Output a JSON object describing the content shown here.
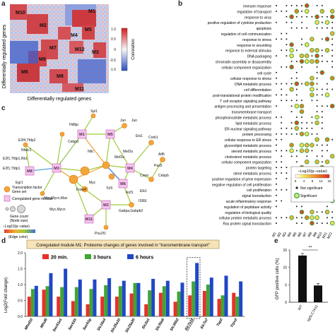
{
  "panels": {
    "a": {
      "letter": "a",
      "xlabel": "Differentially regulated genes",
      "ylabel": "Differentially regulated genes",
      "colorbar_title": "Correlation",
      "colorbar_ticks": [
        "1.0",
        "0.5",
        "0",
        "-0.5",
        "-1.0"
      ],
      "modules": [
        "M1",
        "M2",
        "M3",
        "M4",
        "M5",
        "M6",
        "M7",
        "M8",
        "M9",
        "M10",
        "M11",
        "M12"
      ]
    },
    "b": {
      "letter": "b",
      "terms": [
        "immune response",
        "regulation of transport",
        "response to virus",
        "positive regulation of cytokine production",
        "apoptosis",
        "regulation of cell communication",
        "response to stress",
        "response to wounding",
        "response to external stimulus",
        "DNA packaging",
        "chromatin assembly or disassembly",
        "cellular component organization",
        "cell cycle",
        "cellular response to stress",
        "DNA metabolic process",
        "cell differentiation",
        "post-translational protein modification",
        "T cell receptor signaling pathway",
        "antigen processing and presentation",
        "transmembrane transport",
        "phosphoinositide metabolic process",
        "lipid metabolic process",
        "ER-nuclear signaling pathway",
        "protein processing",
        "cellular response to ER stress",
        "glycerolipid metabolic process",
        "steroid metabolic process",
        "cholesterol metabolic process",
        "cellular component organization",
        "protein targeting",
        "sterol metabolic process",
        "positive regulation of gene expression",
        "negative regulation of cell proliferation",
        "cell proliferation",
        "signal transduction",
        "acute inflammatory response",
        "regulation of peptidase activity",
        "regulation of biological quality",
        "cellular protein metabolic process",
        "Ras protein signal transduction"
      ],
      "modules": [
        "M1",
        "M2",
        "M3",
        "M4",
        "M5",
        "M6",
        "M7",
        "M8",
        "M9",
        "M10",
        "M11",
        "M12"
      ],
      "legend": {
        "title": "−Log10(p−value)",
        "ticks": [
          "0",
          "4",
          "8",
          "12",
          "16"
        ],
        "not_significant": "Not significant",
        "significant": "Significant"
      }
    },
    "c": {
      "letter": "c",
      "legend": {
        "tf": "Transcription factor",
        "gene_set": "Gene set",
        "module": "Coregulated gene module",
        "gene_count": "Gene count",
        "node_size": "(Node size)",
        "pval": "−Log10(p−value)",
        "edge_color": "(Edge color)"
      },
      "modules": [
        "M1",
        "M2",
        "M3",
        "M4",
        "M5",
        "M6",
        "M7",
        "M8",
        "M9",
        "M10",
        "M11",
        "M12"
      ],
      "factors": [
        "Spi1",
        "Jun",
        "Nfe2l2",
        "Atf3",
        "Nfkb1",
        "Nfkb2",
        "Cebpb",
        "Pax5",
        "Atf6",
        "Mef2a",
        "Crem",
        "Maz",
        "Foxo4",
        "Tcf3",
        "Ikzf1",
        "Creb1",
        "SP1",
        "Ets1",
        "Myc",
        "Elk1",
        "Hoxa9",
        "Stat1",
        "ISRE",
        "Gfi1",
        "E2F",
        "Gabpa",
        "Pou2f1"
      ],
      "labels": [
        "Spi1",
        "Jun",
        "Hdlbp",
        "Cebpd",
        "Nfic",
        "Ets1",
        "Creb1",
        "Jun",
        "E2f4,Tfdp2",
        "Nfatc1",
        "Mef2a",
        "Atf6",
        "Pax5",
        "Mef2a",
        "Crem",
        "Cebpb",
        "E2f1,Tfdp1,Rb1",
        "Egr1",
        "Foxo4",
        "Myc",
        "E2f1,Tfdp1",
        "Tcf3",
        "Ikzf1",
        "Elk1",
        "Myc,Mycn,Max",
        "ISRE",
        "Myc,Mycn",
        "Gabpa,Gabpb2",
        "Pou2f1"
      ]
    },
    "d": {
      "letter": "d",
      "banner": "Coregulated module M1: Proteome changes of genes involved in “transmembrane transport”",
      "ylabel": "Log2(Fold change)",
      "yticks": [
        "2.0",
        "1.5",
        "1.0",
        "0.5",
        "0"
      ]
    },
    "e": {
      "letter": "e",
      "ylabel": "GFP positive cells (%)",
      "yticks": [
        "15",
        "10",
        "5",
        "0"
      ],
      "significance": "**"
    }
  },
  "chart_data": [
    {
      "type": "bar",
      "panel": "d",
      "ylabel": "Log2(Fold change)",
      "ylim": [
        0,
        2.0
      ],
      "categories": [
        "Mfsd10",
        "Mfsd6",
        "Sec61a1",
        "Sec61b",
        "Sec61g",
        "Slc16a3",
        "Slc25a10",
        "Slc25a20",
        "Slc2a1",
        "Slc30a6",
        "Slc35b2",
        "Slc7a11",
        "Slc7a7",
        "Tap2",
        "Trpv2"
      ],
      "series": [
        {
          "name": "20 min.",
          "color": "#e8302a",
          "values": [
            0.62,
            0.84,
            0.62,
            0.48,
            0.38,
            0.62,
            0.62,
            0.72,
            0.38,
            0.74,
            0.46,
            0.66,
            0.8,
            0.55,
            0.74
          ]
        },
        {
          "name": "3 hours",
          "color": "#3fa535",
          "values": [
            0.86,
            0.95,
            0.92,
            0.92,
            0.86,
            0.98,
            0.95,
            1.05,
            0.82,
            0.95,
            0.78,
            1.1,
            1.0,
            0.66,
            0.62
          ]
        },
        {
          "name": "6 hours",
          "color": "#2047c8",
          "values": [
            0.96,
            1.36,
            1.5,
            1.16,
            1.16,
            1.2,
            1.12,
            1.05,
            1.18,
            1.12,
            1.06,
            1.68,
            1.22,
            1.28,
            1.1
          ]
        }
      ],
      "highlight": "Slc7a11"
    },
    {
      "type": "bar",
      "panel": "e",
      "ylabel": "GFP positive cells (%)",
      "ylim": [
        0,
        15
      ],
      "categories": [
        "WT",
        "sgSLC7A11"
      ],
      "values": [
        13.4,
        4.8
      ],
      "color": "#111111"
    }
  ]
}
